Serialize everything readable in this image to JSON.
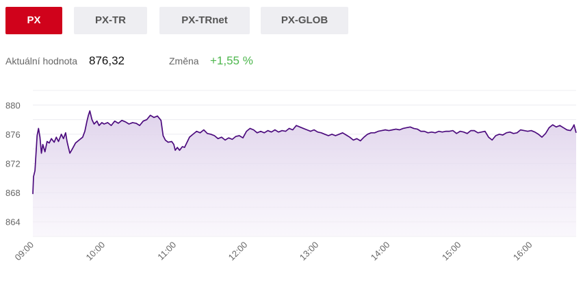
{
  "tabs": [
    {
      "label": "PX",
      "active": true
    },
    {
      "label": "PX-TR",
      "active": false
    },
    {
      "label": "PX-TRnet",
      "active": false
    },
    {
      "label": "PX-GLOB",
      "active": false
    }
  ],
  "summary": {
    "current_label": "Aktuální hodnota",
    "current_value": "876,32",
    "change_label": "Změna",
    "change_value": "+1,55 %"
  },
  "colors": {
    "accent": "#d0021b",
    "line": "#4b0a7d",
    "fill": "#e9e1f1",
    "positive": "#4cb64c"
  },
  "chart_data": {
    "type": "area",
    "x_tick_labels": [
      "09:00",
      "10:00",
      "11:00",
      "12:00",
      "13:00",
      "14:00",
      "15:00",
      "16:00"
    ],
    "y_tick_labels": [
      "864",
      "868",
      "872",
      "876",
      "880"
    ],
    "ylim": [
      862,
      882
    ],
    "grid": true,
    "x_unit": "hours",
    "points": [
      [
        9.0,
        867.8
      ],
      [
        9.01,
        870.2
      ],
      [
        9.03,
        871.0
      ],
      [
        9.06,
        875.8
      ],
      [
        9.08,
        876.8
      ],
      [
        9.1,
        875.6
      ],
      [
        9.12,
        873.4
      ],
      [
        9.14,
        874.6
      ],
      [
        9.17,
        873.6
      ],
      [
        9.2,
        875.0
      ],
      [
        9.23,
        874.8
      ],
      [
        9.26,
        875.4
      ],
      [
        9.3,
        874.9
      ],
      [
        9.33,
        875.6
      ],
      [
        9.36,
        875.0
      ],
      [
        9.4,
        876.0
      ],
      [
        9.43,
        875.4
      ],
      [
        9.46,
        876.2
      ],
      [
        9.48,
        875.0
      ],
      [
        9.5,
        874.2
      ],
      [
        9.52,
        873.4
      ],
      [
        9.55,
        873.9
      ],
      [
        9.6,
        874.8
      ],
      [
        9.65,
        875.2
      ],
      [
        9.7,
        875.6
      ],
      [
        9.73,
        876.4
      ],
      [
        9.76,
        877.8
      ],
      [
        9.78,
        878.6
      ],
      [
        9.8,
        879.2
      ],
      [
        9.83,
        878.0
      ],
      [
        9.86,
        877.4
      ],
      [
        9.9,
        877.8
      ],
      [
        9.93,
        877.2
      ],
      [
        9.97,
        877.6
      ],
      [
        10.0,
        877.4
      ],
      [
        10.05,
        877.6
      ],
      [
        10.1,
        877.2
      ],
      [
        10.15,
        877.8
      ],
      [
        10.2,
        877.5
      ],
      [
        10.25,
        877.9
      ],
      [
        10.3,
        877.7
      ],
      [
        10.35,
        877.4
      ],
      [
        10.4,
        877.6
      ],
      [
        10.45,
        877.5
      ],
      [
        10.5,
        877.2
      ],
      [
        10.55,
        877.8
      ],
      [
        10.6,
        878.0
      ],
      [
        10.65,
        878.6
      ],
      [
        10.7,
        878.3
      ],
      [
        10.75,
        878.5
      ],
      [
        10.8,
        877.9
      ],
      [
        10.83,
        875.8
      ],
      [
        10.86,
        875.2
      ],
      [
        10.9,
        874.9
      ],
      [
        10.95,
        875.0
      ],
      [
        10.98,
        874.6
      ],
      [
        11.0,
        873.8
      ],
      [
        11.03,
        874.2
      ],
      [
        11.06,
        873.8
      ],
      [
        11.1,
        874.3
      ],
      [
        11.13,
        874.2
      ],
      [
        11.16,
        874.8
      ],
      [
        11.2,
        875.6
      ],
      [
        11.25,
        876.0
      ],
      [
        11.3,
        876.4
      ],
      [
        11.35,
        876.2
      ],
      [
        11.4,
        876.6
      ],
      [
        11.45,
        876.1
      ],
      [
        11.5,
        876.0
      ],
      [
        11.55,
        875.8
      ],
      [
        11.6,
        875.4
      ],
      [
        11.65,
        875.6
      ],
      [
        11.7,
        875.2
      ],
      [
        11.75,
        875.5
      ],
      [
        11.8,
        875.3
      ],
      [
        11.85,
        875.7
      ],
      [
        11.9,
        875.8
      ],
      [
        11.95,
        875.5
      ],
      [
        12.0,
        876.4
      ],
      [
        12.05,
        876.8
      ],
      [
        12.1,
        876.6
      ],
      [
        12.15,
        876.2
      ],
      [
        12.2,
        876.4
      ],
      [
        12.25,
        876.2
      ],
      [
        12.3,
        876.5
      ],
      [
        12.35,
        876.3
      ],
      [
        12.4,
        876.6
      ],
      [
        12.45,
        876.3
      ],
      [
        12.5,
        876.5
      ],
      [
        12.55,
        876.4
      ],
      [
        12.6,
        876.8
      ],
      [
        12.65,
        876.6
      ],
      [
        12.7,
        877.2
      ],
      [
        12.75,
        877.0
      ],
      [
        12.8,
        876.8
      ],
      [
        12.85,
        876.6
      ],
      [
        12.9,
        876.4
      ],
      [
        12.95,
        876.6
      ],
      [
        13.0,
        876.3
      ],
      [
        13.05,
        876.2
      ],
      [
        13.1,
        876.0
      ],
      [
        13.15,
        875.8
      ],
      [
        13.2,
        876.0
      ],
      [
        13.25,
        875.8
      ],
      [
        13.3,
        876.0
      ],
      [
        13.35,
        876.2
      ],
      [
        13.4,
        875.9
      ],
      [
        13.45,
        875.6
      ],
      [
        13.5,
        875.2
      ],
      [
        13.55,
        875.4
      ],
      [
        13.6,
        875.1
      ],
      [
        13.65,
        875.6
      ],
      [
        13.7,
        876.0
      ],
      [
        13.75,
        876.2
      ],
      [
        13.8,
        876.2
      ],
      [
        13.85,
        876.4
      ],
      [
        13.9,
        876.5
      ],
      [
        13.95,
        876.6
      ],
      [
        14.0,
        876.5
      ],
      [
        14.05,
        876.6
      ],
      [
        14.1,
        876.7
      ],
      [
        14.15,
        876.6
      ],
      [
        14.2,
        876.8
      ],
      [
        14.25,
        876.9
      ],
      [
        14.3,
        877.0
      ],
      [
        14.35,
        876.8
      ],
      [
        14.4,
        876.7
      ],
      [
        14.45,
        876.4
      ],
      [
        14.5,
        876.4
      ],
      [
        14.55,
        876.2
      ],
      [
        14.6,
        876.3
      ],
      [
        14.65,
        876.2
      ],
      [
        14.7,
        876.4
      ],
      [
        14.75,
        876.3
      ],
      [
        14.8,
        876.4
      ],
      [
        14.85,
        876.4
      ],
      [
        14.9,
        876.5
      ],
      [
        14.95,
        876.1
      ],
      [
        15.0,
        876.4
      ],
      [
        15.05,
        876.3
      ],
      [
        15.1,
        876.1
      ],
      [
        15.15,
        876.5
      ],
      [
        15.2,
        876.5
      ],
      [
        15.25,
        876.2
      ],
      [
        15.3,
        876.3
      ],
      [
        15.35,
        876.4
      ],
      [
        15.4,
        875.6
      ],
      [
        15.45,
        875.2
      ],
      [
        15.5,
        875.8
      ],
      [
        15.55,
        876.0
      ],
      [
        15.6,
        875.9
      ],
      [
        15.65,
        876.2
      ],
      [
        15.7,
        876.3
      ],
      [
        15.75,
        876.1
      ],
      [
        15.8,
        876.2
      ],
      [
        15.85,
        876.6
      ],
      [
        15.9,
        876.5
      ],
      [
        15.95,
        876.4
      ],
      [
        16.0,
        876.5
      ],
      [
        16.05,
        876.3
      ],
      [
        16.1,
        876.0
      ],
      [
        16.15,
        875.6
      ],
      [
        16.2,
        876.1
      ],
      [
        16.25,
        876.9
      ],
      [
        16.3,
        877.3
      ],
      [
        16.35,
        877.0
      ],
      [
        16.4,
        877.2
      ],
      [
        16.45,
        876.9
      ],
      [
        16.5,
        876.6
      ],
      [
        16.55,
        876.5
      ],
      [
        16.58,
        876.9
      ],
      [
        16.6,
        877.3
      ],
      [
        16.63,
        876.2
      ]
    ]
  }
}
